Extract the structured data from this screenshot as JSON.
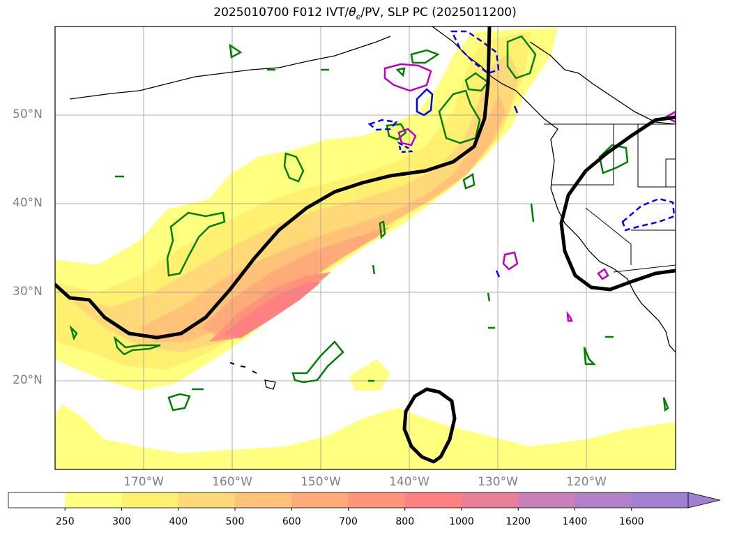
{
  "title": "2025010700 F012 IVT/θe/PV, SLP PC (2025011200)",
  "title_parts": {
    "prefix": "2025010700 F012 IVT/",
    "theta": "θ",
    "theta_sub": "e",
    "suffix": "/PV, SLP PC (2025011200)"
  },
  "map": {
    "projection": "lat-lon",
    "lon_range": [
      -180,
      -110
    ],
    "lat_range": [
      10,
      60
    ],
    "lat_labels": [
      "50°N",
      "40°N",
      "30°N",
      "20°N"
    ],
    "lon_labels": [
      "170°W",
      "160°W",
      "150°W",
      "140°W",
      "130°W",
      "120°W"
    ],
    "gridlines": true
  },
  "colorbar": {
    "levels": [
      "250",
      "300",
      "400",
      "500",
      "600",
      "700",
      "800",
      "1000",
      "1200",
      "1400",
      "1600"
    ],
    "colors": [
      "#ffffff",
      "#ffff80",
      "#fff070",
      "#ffd878",
      "#ffc278",
      "#ffaa78",
      "#ff9478",
      "#ff8080",
      "#e8809a",
      "#c880b8",
      "#b080c8",
      "#a080d0"
    ],
    "extend": "max"
  },
  "contour_colors": {
    "slp": "#000000",
    "theta_e": "#008000",
    "pv_negative": "#0000ff",
    "pv_positive": "#c000c0"
  }
}
